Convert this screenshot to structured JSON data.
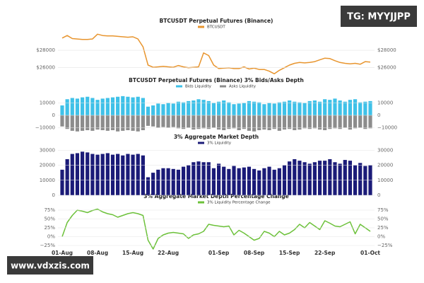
{
  "watermarks": [
    "TG: MYYJJPP",
    "www.vdxzis.com"
  ],
  "chart_data": [
    {
      "type": "line",
      "title": "BTCUSDT Perpetual Futures (Binance)",
      "series": [
        {
          "name": "BTCUSDT",
          "color": "#e8952e",
          "values": [
            29400,
            29700,
            29350,
            29300,
            29250,
            29250,
            29300,
            29850,
            29700,
            29650,
            29650,
            29600,
            29550,
            29500,
            29550,
            29300,
            28400,
            26300,
            26050,
            26100,
            26150,
            26100,
            26050,
            26250,
            26100,
            26000,
            26050,
            26100,
            27700,
            27400,
            26300,
            25900,
            25950,
            26000,
            25900,
            25900,
            26100,
            25850,
            25950,
            25800,
            25800,
            25600,
            25300,
            25700,
            26000,
            26300,
            26500,
            26600,
            26550,
            26600,
            26700,
            26900,
            27100,
            27050,
            26800,
            26600,
            26500,
            26450,
            26500,
            26400,
            26700,
            26650
          ]
        }
      ],
      "ylim": [
        25000,
        30200
      ],
      "yticks": [
        {
          "value": 26000,
          "label": "$26000"
        },
        {
          "value": 28000,
          "label": "$28000"
        }
      ]
    },
    {
      "type": "bar",
      "title": "BTCUSDT Perpetual Futures (Binance) 3% Bids/Asks Depth",
      "series": [
        {
          "name": "Bids Liquidity",
          "color": "#3fc1e8",
          "values": [
            8000,
            13000,
            14000,
            13500,
            14500,
            15000,
            14000,
            12500,
            13500,
            14000,
            14500,
            15000,
            15500,
            15000,
            14500,
            15000,
            14000,
            7000,
            8000,
            9500,
            9000,
            10000,
            9500,
            11000,
            10500,
            11500,
            12000,
            13000,
            12500,
            11500,
            10000,
            11000,
            12000,
            10500,
            9000,
            9500,
            10000,
            11500,
            11000,
            10500,
            9000,
            10000,
            9500,
            10500,
            11000,
            12000,
            11000,
            10500,
            10000,
            11500,
            12000,
            11000,
            13000,
            12500,
            13500,
            12000,
            11000,
            12500,
            13000,
            10500,
            11000,
            11500
          ]
        },
        {
          "name": "Asks Liquidity",
          "color": "#8c8c8c",
          "values": [
            -9000,
            -11000,
            -12500,
            -13000,
            -12500,
            -12000,
            -12500,
            -11500,
            -12000,
            -12500,
            -12000,
            -13000,
            -12500,
            -12000,
            -12500,
            -13000,
            -12000,
            -8500,
            -9000,
            -10000,
            -9500,
            -10000,
            -9500,
            -10500,
            -11000,
            -10000,
            -11500,
            -11000,
            -10500,
            -11000,
            -10000,
            -11500,
            -12000,
            -11000,
            -10500,
            -12000,
            -11000,
            -12500,
            -13000,
            -12000,
            -11500,
            -12000,
            -11000,
            -12500,
            -11500,
            -11000,
            -12000,
            -11500,
            -10500,
            -11000,
            -10500,
            -11500,
            -12000,
            -11000,
            -10500,
            -11000,
            -10000,
            -11500,
            -10500,
            -10000,
            -11000,
            -10500
          ]
        }
      ],
      "ylim": [
        -20000,
        20000
      ],
      "yticks": [
        {
          "value": -10000,
          "label": "−10000"
        },
        0,
        10000
      ]
    },
    {
      "type": "bar",
      "title": "3% Aggregate Market Depth",
      "series": [
        {
          "name": "3% Liquidity",
          "color": "#1b1b78",
          "values": [
            17000,
            24000,
            27500,
            28000,
            29000,
            28500,
            27500,
            27000,
            27500,
            28000,
            27000,
            27500,
            26500,
            27500,
            27000,
            27500,
            26500,
            12000,
            15000,
            17000,
            18000,
            18000,
            17500,
            17000,
            19000,
            20000,
            22000,
            22500,
            22000,
            22000,
            18000,
            21000,
            19000,
            17500,
            19500,
            18000,
            18500,
            19000,
            17500,
            16500,
            18000,
            19000,
            17000,
            18000,
            20000,
            22500,
            24000,
            23000,
            22000,
            21000,
            22000,
            23000,
            23000,
            24000,
            22000,
            21000,
            23500,
            23000,
            20000,
            21500,
            19500,
            20000
          ]
        }
      ],
      "ylim": [
        0,
        32000
      ],
      "yticks": [
        0,
        10000,
        20000,
        30000
      ]
    },
    {
      "type": "line",
      "title": "3% Aggregate Market Depth Percentage Change",
      "series": [
        {
          "name": "3% Liquidity Percentage Change",
          "color": "#6cc13a",
          "values": [
            0,
            40,
            60,
            75,
            72,
            68,
            74,
            78,
            70,
            65,
            62,
            55,
            60,
            65,
            68,
            65,
            60,
            -10,
            -35,
            -5,
            5,
            10,
            12,
            10,
            8,
            -5,
            5,
            8,
            15,
            35,
            32,
            30,
            28,
            30,
            5,
            18,
            10,
            0,
            -10,
            -5,
            15,
            10,
            0,
            15,
            5,
            10,
            20,
            35,
            25,
            40,
            30,
            20,
            45,
            38,
            30,
            28,
            35,
            42,
            8,
            35,
            25,
            15
          ]
        }
      ],
      "ylim": [
        -35,
        85
      ],
      "yticks": [
        {
          "value": -25,
          "label": "−25%"
        },
        {
          "value": 0,
          "label": "0%"
        },
        {
          "value": 25,
          "label": "25%"
        },
        {
          "value": 50,
          "label": "50%"
        },
        {
          "value": 75,
          "label": "75%"
        }
      ],
      "categories": [
        "01-Aug",
        null,
        null,
        null,
        null,
        null,
        null,
        "08-Aug",
        null,
        null,
        null,
        null,
        null,
        null,
        "15-Aug",
        null,
        null,
        null,
        null,
        null,
        null,
        "22-Aug",
        null,
        null,
        null,
        null,
        null,
        null,
        null,
        null,
        null,
        "01-Sep",
        null,
        null,
        null,
        null,
        null,
        null,
        "08-Sep",
        null,
        null,
        null,
        null,
        null,
        null,
        "15-Sep",
        null,
        null,
        null,
        null,
        null,
        null,
        "22-Sep",
        null,
        null,
        null,
        null,
        null,
        null,
        null,
        null,
        "01-Oct"
      ]
    }
  ]
}
